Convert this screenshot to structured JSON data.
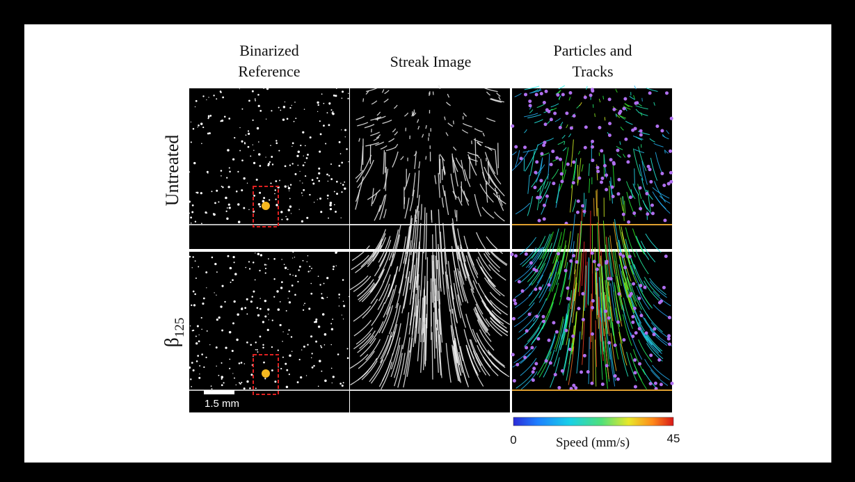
{
  "columns": [
    [
      "Binarized",
      "Reference"
    ],
    [
      "Streak Image"
    ],
    [
      "Particles and",
      "Tracks"
    ]
  ],
  "rows": [
    "Untreated",
    {
      "symbol": "β",
      "subscript": "125"
    }
  ],
  "scale_bar": "1.5 mm",
  "colorbar": {
    "label": "Speed (mm/s)",
    "min": "0",
    "max": "45"
  }
}
